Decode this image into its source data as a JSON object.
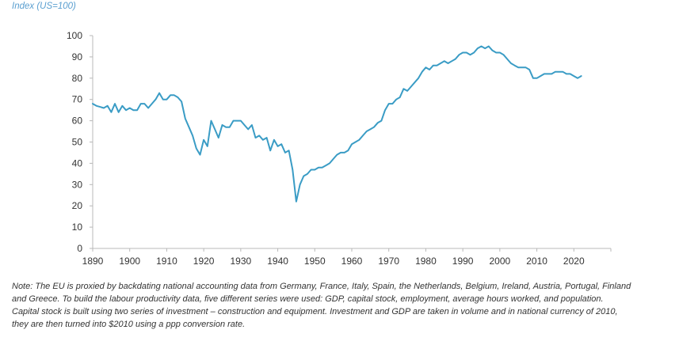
{
  "chart_data": {
    "type": "line",
    "ylabel": "Index (US=100)",
    "xlim": [
      1890,
      2030
    ],
    "ylim": [
      0,
      100
    ],
    "x_ticks": [
      1890,
      1900,
      1910,
      1920,
      1930,
      1940,
      1950,
      1960,
      1970,
      1980,
      1990,
      2000,
      2010,
      2020
    ],
    "y_ticks": [
      0,
      10,
      20,
      30,
      40,
      50,
      60,
      70,
      80,
      90,
      100
    ],
    "grid": false,
    "line_color": "#3a9cc5",
    "series": [
      {
        "x": [
          1890,
          1891,
          1892,
          1893,
          1894,
          1895,
          1896,
          1897,
          1898,
          1899,
          1900,
          1901,
          1902,
          1903,
          1904,
          1905,
          1906,
          1907,
          1908,
          1909,
          1910,
          1911,
          1912,
          1913,
          1914,
          1915,
          1916,
          1917,
          1918,
          1919,
          1920,
          1921,
          1922,
          1923,
          1924,
          1925,
          1926,
          1927,
          1928,
          1929,
          1930,
          1931,
          1932,
          1933,
          1934,
          1935,
          1936,
          1937,
          1938,
          1939,
          1940,
          1941,
          1942,
          1943,
          1944,
          1945,
          1946,
          1947,
          1948,
          1949,
          1950,
          1951,
          1952,
          1953,
          1954,
          1955,
          1956,
          1957,
          1958,
          1959,
          1960,
          1961,
          1962,
          1963,
          1964,
          1965,
          1966,
          1967,
          1968,
          1969,
          1970,
          1971,
          1972,
          1973,
          1974,
          1975,
          1976,
          1977,
          1978,
          1979,
          1980,
          1981,
          1982,
          1983,
          1984,
          1985,
          1986,
          1987,
          1988,
          1989,
          1990,
          1991,
          1992,
          1993,
          1994,
          1995,
          1996,
          1997,
          1998,
          1999,
          2000,
          2001,
          2002,
          2003,
          2004,
          2005,
          2006,
          2007,
          2008,
          2009,
          2010,
          2011,
          2012,
          2013,
          2014,
          2015,
          2016,
          2017,
          2018,
          2019,
          2020,
          2021,
          2022
        ],
        "y": [
          68,
          67,
          66.5,
          66,
          67,
          64,
          68,
          64,
          67,
          65,
          66,
          65,
          65,
          68,
          68,
          66,
          68,
          70,
          73,
          70,
          70,
          72,
          72,
          71,
          69,
          61,
          57,
          53,
          47,
          44,
          51,
          48,
          60,
          56,
          52,
          58,
          57,
          57,
          60,
          60,
          60,
          58,
          56,
          58,
          52,
          53,
          51,
          52,
          46,
          51,
          48,
          49,
          45,
          46,
          37,
          22,
          30,
          34,
          35,
          37,
          37,
          38,
          38,
          39,
          40,
          42,
          44,
          45,
          45,
          46,
          49,
          50,
          51,
          53,
          55,
          56,
          57,
          59,
          60,
          65,
          68,
          68,
          70,
          71,
          75,
          74,
          76,
          78,
          80,
          83,
          85,
          84,
          86,
          86,
          87,
          88,
          87,
          88,
          89,
          91,
          92,
          92,
          91,
          92,
          94,
          95,
          94,
          95,
          93,
          92,
          92,
          91,
          89,
          87,
          86,
          85,
          85,
          85,
          84,
          80,
          80,
          81,
          82,
          82,
          82,
          83,
          83,
          83,
          82,
          82,
          81,
          80,
          81
        ]
      }
    ]
  },
  "note": {
    "line1": "Note: The EU is proxied by backdating national accounting data from Germany, France, Italy, Spain, the Netherlands, Belgium, Ireland, Austria, Portugal, Finland",
    "line2": "and Greece. To build the labour productivity data, five different series were used: GDP, capital stock, employment, average hours worked, and population.",
    "line3": "Capital stock is built using two series of investment – construction and equipment. Investment and GDP are taken in volume and in national currency of 2010,",
    "line4": "they are then turned into $2010 using a ppp conversion rate."
  }
}
